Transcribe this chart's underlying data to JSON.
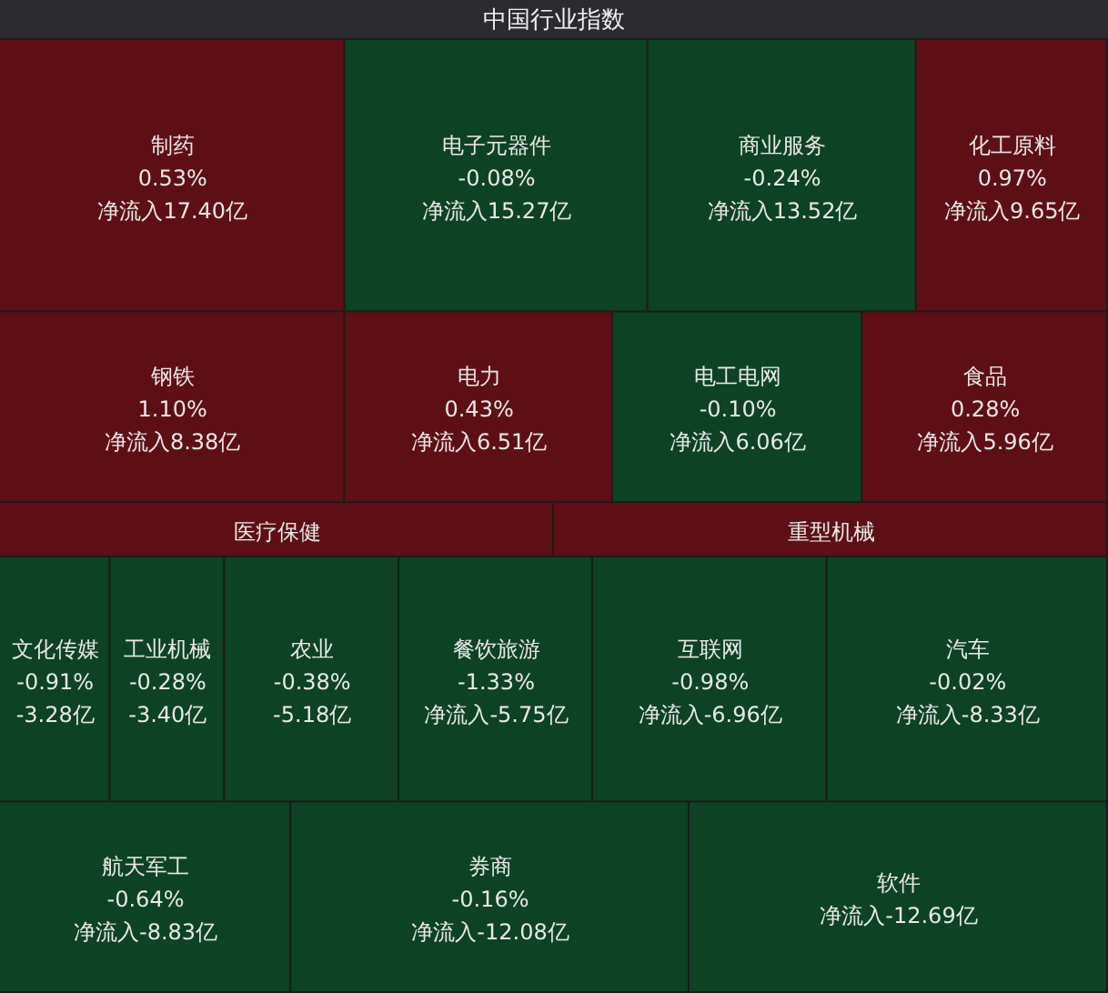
{
  "chart_data": {
    "type": "other",
    "title": "中国行业指数",
    "categories": [
      "制药",
      "电子元器件",
      "商业服务",
      "化工原料",
      "钢铁",
      "电力",
      "电工电网",
      "食品",
      "医疗保健",
      "重型机械",
      "文化传媒",
      "工业机械",
      "农业",
      "餐饮旅游",
      "互联网",
      "汽车",
      "航天军工",
      "券商",
      "软件"
    ],
    "series": [
      {
        "values": [
          0.53,
          -0.08,
          -0.24,
          0.97,
          1.1,
          0.43,
          -0.1,
          0.28,
          null,
          null,
          -0.91,
          -0.28,
          -0.38,
          -1.33,
          -0.98,
          -0.02,
          -0.64,
          -0.16,
          null
        ],
        "value_labels": [
          "0.53%",
          "-0.08%",
          "-0.24%",
          "0.97%",
          "1.10%",
          "0.43%",
          "-0.10%",
          "0.28%",
          null,
          null,
          "-0.91%",
          "-0.28%",
          "-0.38%",
          "-1.33%",
          "-0.98%",
          "-0.02%",
          "-0.64%",
          "-0.16%",
          null
        ],
        "colors": [
          "#5e0f15",
          "#0e4224",
          "#0e4224",
          "#5e0f15",
          "#5e0f15",
          "#5e0f15",
          "#0e4224",
          "#5e0f15",
          "#5e0f15",
          "#5e0f15",
          "#0e4224",
          "#0e4224",
          "#0e4224",
          "#0e4224",
          "#0e4224",
          "#0e4224",
          "#0e4224",
          "#0e4224",
          "#0e4224"
        ]
      },
      {
        "values": [
          17.4,
          15.27,
          13.52,
          9.65,
          8.38,
          6.51,
          6.06,
          5.96,
          null,
          null,
          -3.28,
          -3.4,
          -5.18,
          -5.75,
          -6.96,
          -8.33,
          -8.83,
          -12.08,
          -12.69
        ],
        "value_labels": [
          "净流入17.40亿",
          "净流入15.27亿",
          "净流入13.52亿",
          "净流入9.65亿",
          "净流入8.38亿",
          "净流入6.51亿",
          "净流入6.06亿",
          "净流入5.96亿",
          null,
          null,
          "-3.28亿",
          "-3.40亿",
          "-5.18亿",
          "净流入-5.75亿",
          "净流入-6.96亿",
          "净流入-8.33亿",
          "净流入-8.83亿",
          "净流入-12.08亿",
          "净流入-12.69亿"
        ]
      }
    ]
  }
}
